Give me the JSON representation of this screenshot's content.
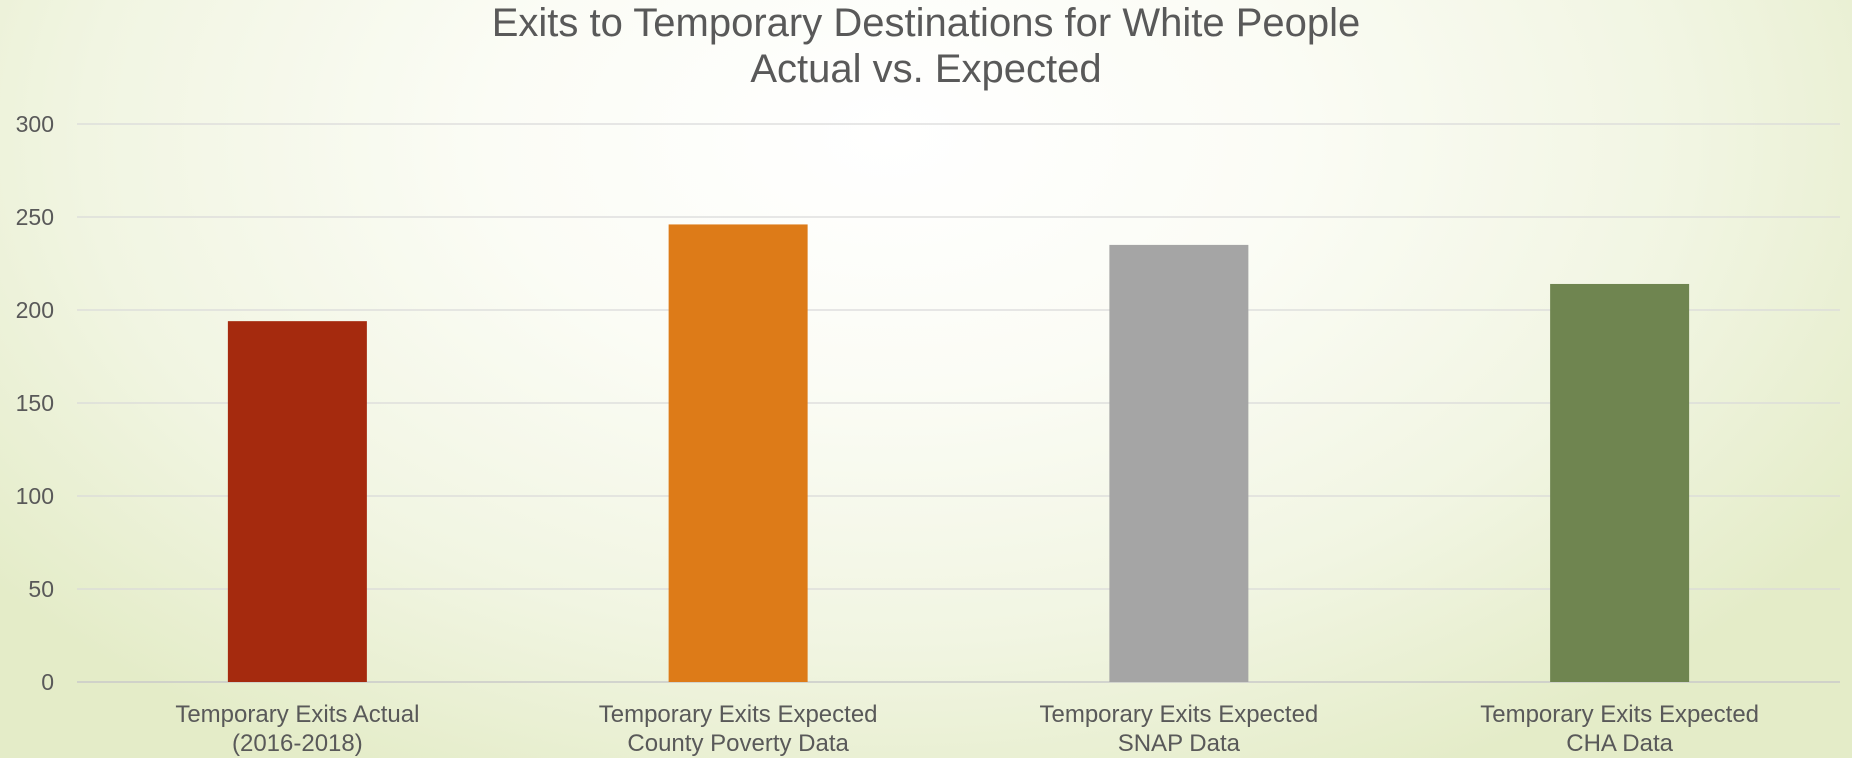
{
  "chart_data": {
    "type": "bar",
    "title": [
      "Exits to Temporary Destinations for White People",
      "Actual vs. Expected"
    ],
    "categories": [
      [
        "Temporary Exits Actual",
        "(2016-2018)"
      ],
      [
        "Temporary Exits Expected",
        "County Poverty Data"
      ],
      [
        "Temporary Exits Expected",
        "SNAP Data"
      ],
      [
        "Temporary Exits Expected",
        "CHA Data"
      ]
    ],
    "values": [
      194,
      246,
      235,
      214
    ],
    "colors": [
      "#a52a0e",
      "#dd7b18",
      "#a5a5a5",
      "#6f8550"
    ],
    "ylim": [
      0,
      300
    ],
    "yticks": [
      0,
      50,
      100,
      150,
      200,
      250,
      300
    ],
    "grid": true,
    "legend": "none"
  }
}
